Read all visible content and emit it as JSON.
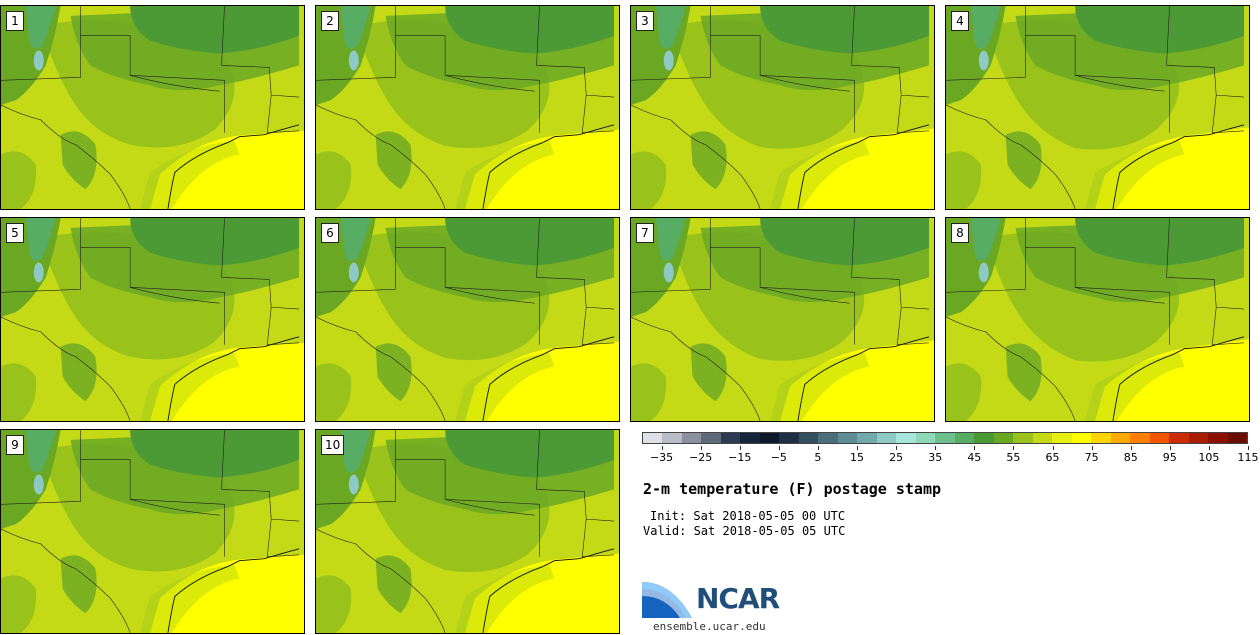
{
  "stamps": [
    {
      "label": "1"
    },
    {
      "label": "2"
    },
    {
      "label": "3"
    },
    {
      "label": "4"
    },
    {
      "label": "5"
    },
    {
      "label": "6"
    },
    {
      "label": "7"
    },
    {
      "label": "8"
    },
    {
      "label": "9"
    },
    {
      "label": "10"
    }
  ],
  "colorbar": {
    "colors": [
      "#dfe0e8",
      "#b8bcc6",
      "#8a909e",
      "#60697a",
      "#2d3a52",
      "#17253b",
      "#0e1a2b",
      "#1e2f45",
      "#34505f",
      "#4a6e7a",
      "#5e8c93",
      "#73a9ab",
      "#8ec9c5",
      "#a8e6dc",
      "#8ed9b8",
      "#6ec18d",
      "#56ad63",
      "#4b9a35",
      "#6aa824",
      "#99c31a",
      "#c4da16",
      "#e8ef12",
      "#ffff00",
      "#ffd400",
      "#ffaa00",
      "#ff7f00",
      "#f25400",
      "#cc2a00",
      "#aa1c00",
      "#8a1000",
      "#6a0c00"
    ],
    "tick_labels": [
      "−35",
      "−25",
      "−15",
      "−5",
      "5",
      "15",
      "25",
      "35",
      "45",
      "55",
      "65",
      "75",
      "85",
      "95",
      "105",
      "115"
    ]
  },
  "title": "2-m temperature (F) postage stamp",
  "init_text": "Init: Sat 2018-05-05 00 UTC",
  "valid_text": "Valid: Sat 2018-05-05 05 UTC",
  "logo": {
    "name": "NCAR",
    "url": "ensemble.ucar.edu"
  },
  "colors": {
    "hot": "#ffff00",
    "warm": "#c4da16",
    "mild": "#99c31a",
    "cool": "#6aa824",
    "cooler": "#4b9a35",
    "mountain": "#56ad63"
  }
}
